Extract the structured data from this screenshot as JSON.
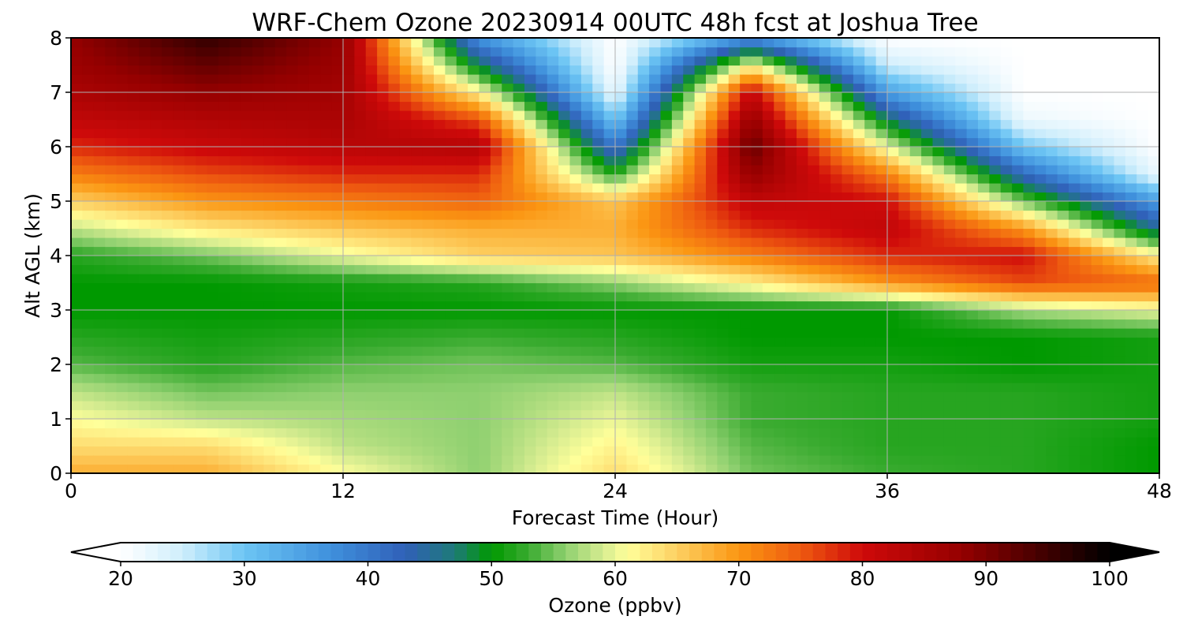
{
  "chart_data": {
    "type": "heatmap",
    "title": "WRF-Chem Ozone  20230914 00UTC 48h fcst at Joshua Tree",
    "xlabel": "Forecast Time (Hour)",
    "ylabel": "Alt AGL (km)",
    "xlim": [
      0,
      48
    ],
    "ylim": [
      0,
      8
    ],
    "x_ticks": [
      "0",
      "12",
      "24",
      "36",
      "48"
    ],
    "y_ticks": [
      "0",
      "1",
      "2",
      "3",
      "4",
      "5",
      "6",
      "7",
      "8"
    ],
    "grid": true,
    "x": [
      0,
      6,
      12,
      18,
      24,
      30,
      36,
      42,
      48
    ],
    "y": [
      0,
      0.5,
      1,
      1.5,
      2,
      2.5,
      3,
      3.5,
      4,
      4.5,
      5,
      5.5,
      6,
      6.5,
      7,
      7.5,
      8
    ],
    "z": [
      [
        68,
        68,
        61,
        56,
        64,
        55,
        53,
        52,
        50
      ],
      [
        64,
        64,
        58,
        56,
        62,
        54,
        52,
        52,
        50
      ],
      [
        61,
        58,
        57,
        56,
        60,
        53,
        52,
        52,
        51
      ],
      [
        58,
        55,
        56,
        56,
        58,
        53,
        52,
        52,
        51
      ],
      [
        54,
        52,
        54,
        55,
        54,
        51,
        51,
        50,
        51
      ],
      [
        52,
        51,
        52,
        53,
        52,
        50,
        50,
        50,
        51
      ],
      [
        50,
        50,
        50,
        50,
        50,
        50,
        50,
        57,
        60
      ],
      [
        50,
        50,
        51,
        52,
        56,
        62,
        70,
        76,
        74
      ],
      [
        52,
        55,
        60,
        65,
        66,
        72,
        78,
        80,
        62
      ],
      [
        58,
        63,
        66,
        68,
        68,
        78,
        82,
        70,
        45
      ],
      [
        65,
        70,
        72,
        74,
        66,
        82,
        80,
        55,
        35
      ],
      [
        72,
        76,
        78,
        78,
        52,
        88,
        72,
        42,
        22
      ],
      [
        78,
        81,
        83,
        84,
        40,
        92,
        60,
        30,
        20
      ],
      [
        82,
        84,
        85,
        76,
        30,
        88,
        48,
        22,
        20
      ],
      [
        85,
        88,
        86,
        62,
        22,
        82,
        35,
        20,
        20
      ],
      [
        87,
        92,
        87,
        48,
        20,
        62,
        25,
        20,
        20
      ],
      [
        88,
        96,
        88,
        36,
        20,
        36,
        20,
        20,
        20
      ]
    ],
    "colorbar": {
      "label": "Ozone  (ppbv)",
      "min": 20,
      "max": 100,
      "ticks": [
        "20",
        "30",
        "40",
        "50",
        "60",
        "70",
        "80",
        "90",
        "100"
      ],
      "extend": "both"
    }
  },
  "colors": {
    "scale": [
      [
        20,
        "#ffffff"
      ],
      [
        25,
        "#cfeefc"
      ],
      [
        30,
        "#6cc5f4"
      ],
      [
        37,
        "#3f90dc"
      ],
      [
        43,
        "#3060b8"
      ],
      [
        47,
        "#1e7a78"
      ],
      [
        50,
        "#009900"
      ],
      [
        53,
        "#3aab30"
      ],
      [
        56,
        "#8fd070"
      ],
      [
        59,
        "#d6ec90"
      ],
      [
        61,
        "#ffff9a"
      ],
      [
        65,
        "#fdd062"
      ],
      [
        70,
        "#fb9612"
      ],
      [
        75,
        "#ee5a10"
      ],
      [
        80,
        "#cf0a0a"
      ],
      [
        88,
        "#950000"
      ],
      [
        95,
        "#3d0000"
      ],
      [
        100,
        "#000000"
      ]
    ]
  }
}
